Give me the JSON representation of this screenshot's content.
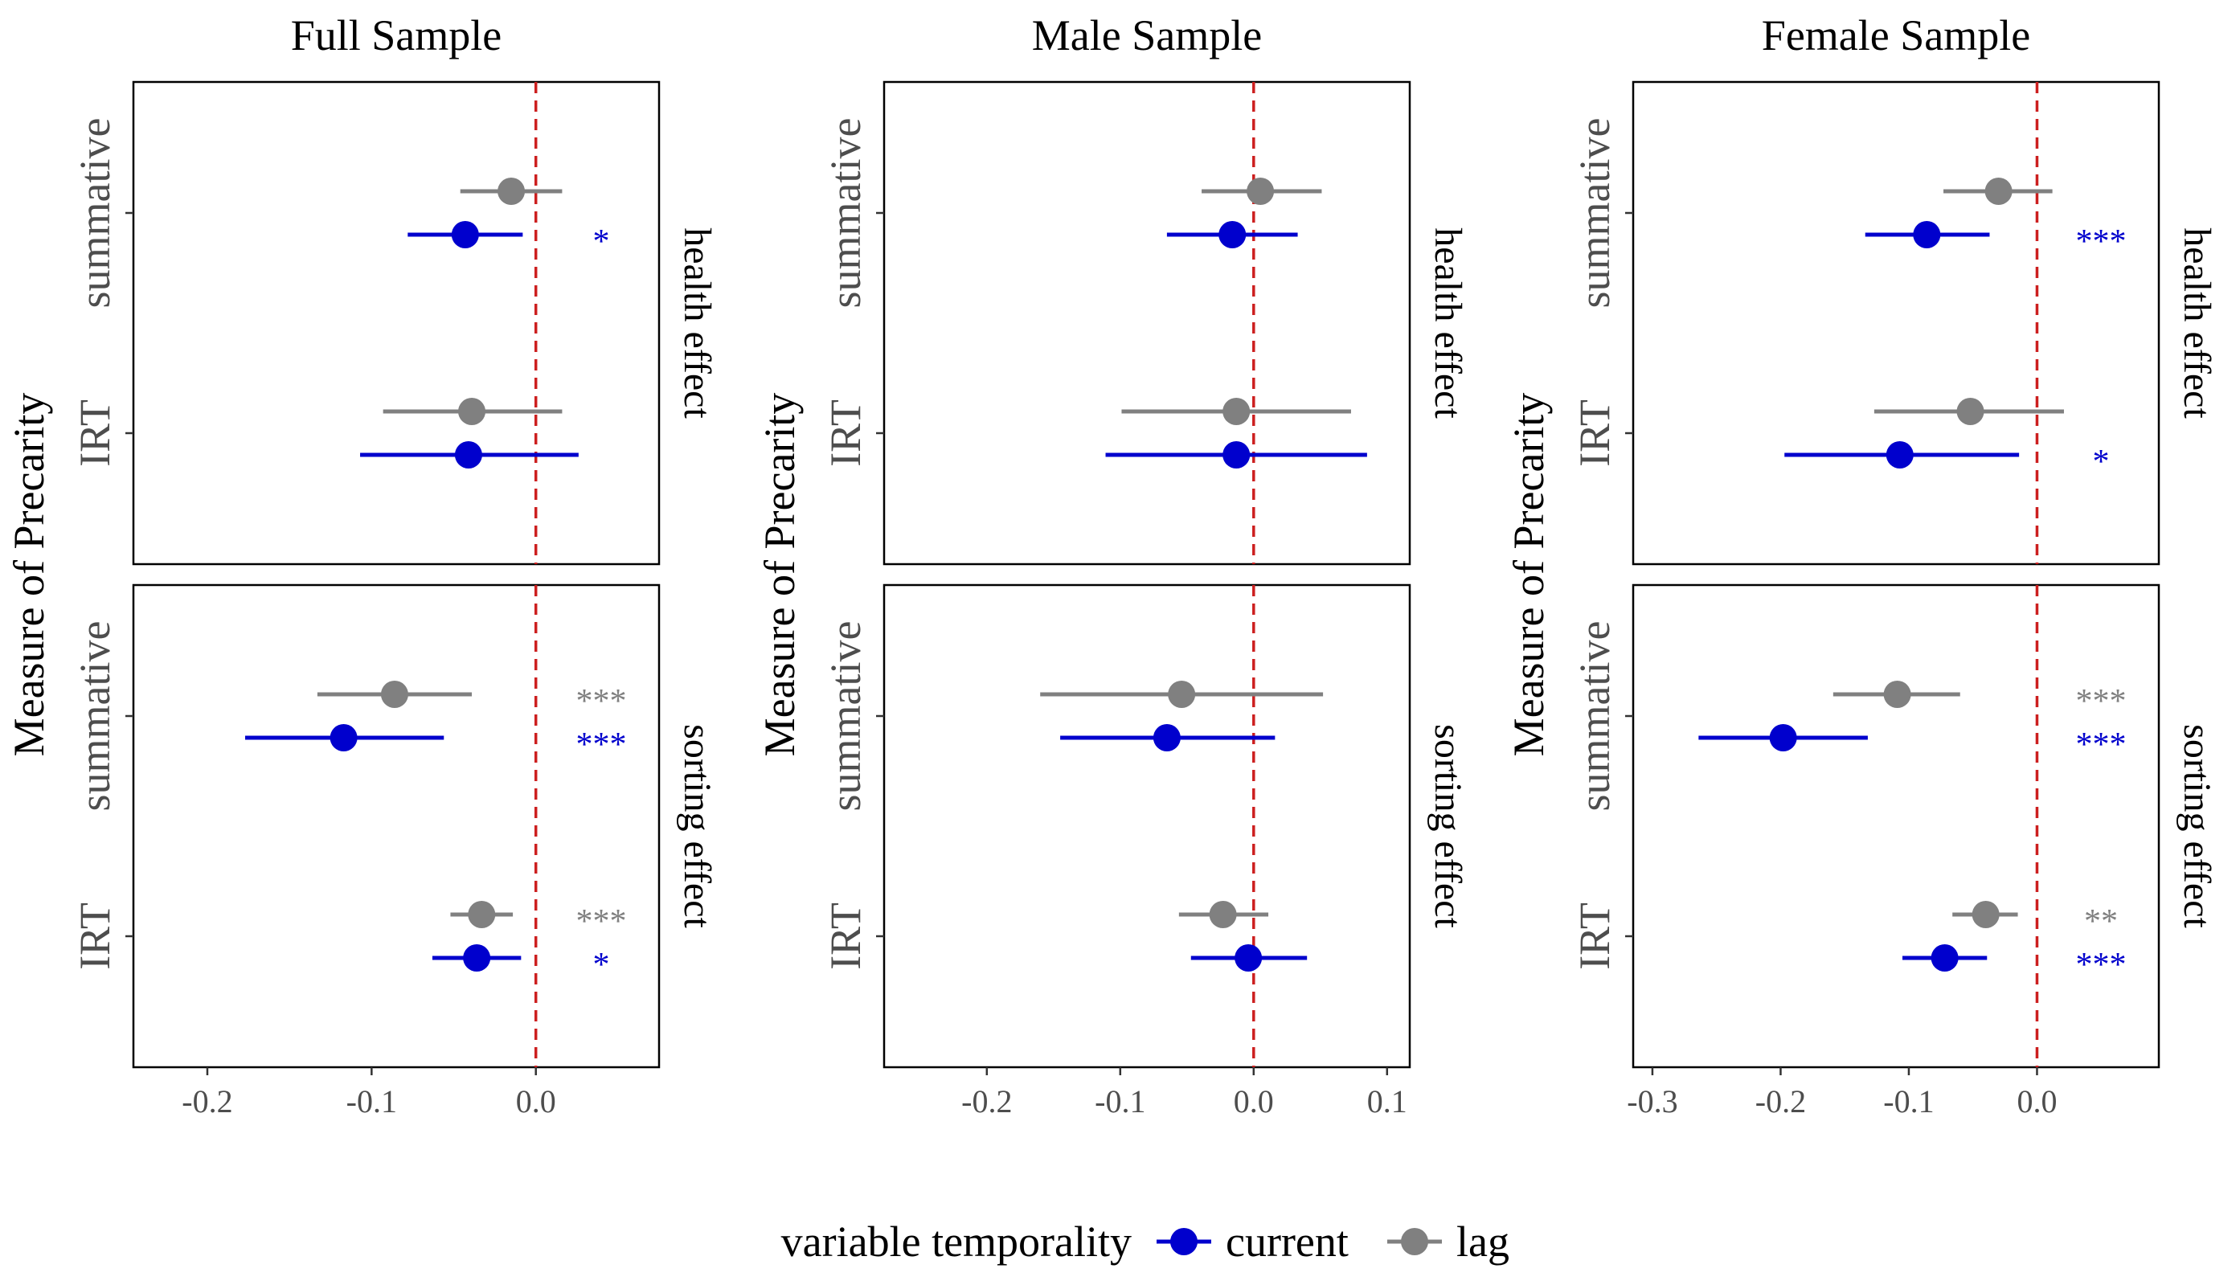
{
  "chart_data": {
    "type": "scatter",
    "subtype": "coefficient plot with error bars",
    "y_title": "Measure of Precarity",
    "y_categories": [
      "summative",
      "IRT"
    ],
    "facet_rows": [
      "health effect",
      "sorting effect"
    ],
    "reference_line_x": 0.0,
    "grid": false,
    "legend": {
      "position": "bottom",
      "title": "variable temporality",
      "entries": [
        {
          "label": "current",
          "color": "#0000CD"
        },
        {
          "label": "lag",
          "color": "#808080"
        }
      ]
    },
    "panels": [
      {
        "title": "Full Sample",
        "xlim": [
          -0.245,
          0.075
        ],
        "x_ticks": [
          -0.2,
          -0.1,
          0.0
        ],
        "x_tick_labels": [
          "-0.2",
          "-0.1",
          "0.0"
        ],
        "rows": [
          {
            "facet": "health effect",
            "estimates": [
              {
                "measure": "summative",
                "series": "lag",
                "x": -0.015,
                "lo": -0.046,
                "hi": 0.016,
                "stars": ""
              },
              {
                "measure": "summative",
                "series": "current",
                "x": -0.043,
                "lo": -0.078,
                "hi": -0.008,
                "stars": "*"
              },
              {
                "measure": "IRT",
                "series": "lag",
                "x": -0.039,
                "lo": -0.093,
                "hi": 0.016,
                "stars": ""
              },
              {
                "measure": "IRT",
                "series": "current",
                "x": -0.041,
                "lo": -0.107,
                "hi": 0.026,
                "stars": ""
              }
            ]
          },
          {
            "facet": "sorting effect",
            "estimates": [
              {
                "measure": "summative",
                "series": "lag",
                "x": -0.086,
                "lo": -0.133,
                "hi": -0.039,
                "stars": "***"
              },
              {
                "measure": "summative",
                "series": "current",
                "x": -0.117,
                "lo": -0.177,
                "hi": -0.056,
                "stars": "***"
              },
              {
                "measure": "IRT",
                "series": "lag",
                "x": -0.033,
                "lo": -0.052,
                "hi": -0.014,
                "stars": "***"
              },
              {
                "measure": "IRT",
                "series": "current",
                "x": -0.036,
                "lo": -0.063,
                "hi": -0.009,
                "stars": "*"
              }
            ]
          }
        ]
      },
      {
        "title": "Male Sample",
        "xlim": [
          -0.277,
          0.117
        ],
        "x_ticks": [
          -0.2,
          -0.1,
          0.0,
          0.1
        ],
        "x_tick_labels": [
          "-0.2",
          "-0.1",
          "0.0",
          "0.1"
        ],
        "rows": [
          {
            "facet": "health effect",
            "estimates": [
              {
                "measure": "summative",
                "series": "lag",
                "x": 0.005,
                "lo": -0.039,
                "hi": 0.051,
                "stars": ""
              },
              {
                "measure": "summative",
                "series": "current",
                "x": -0.016,
                "lo": -0.065,
                "hi": 0.033,
                "stars": ""
              },
              {
                "measure": "IRT",
                "series": "lag",
                "x": -0.013,
                "lo": -0.099,
                "hi": 0.073,
                "stars": ""
              },
              {
                "measure": "IRT",
                "series": "current",
                "x": -0.013,
                "lo": -0.111,
                "hi": 0.085,
                "stars": ""
              }
            ]
          },
          {
            "facet": "sorting effect",
            "estimates": [
              {
                "measure": "summative",
                "series": "lag",
                "x": -0.054,
                "lo": -0.16,
                "hi": 0.052,
                "stars": ""
              },
              {
                "measure": "summative",
                "series": "current",
                "x": -0.065,
                "lo": -0.145,
                "hi": 0.016,
                "stars": ""
              },
              {
                "measure": "IRT",
                "series": "lag",
                "x": -0.023,
                "lo": -0.056,
                "hi": 0.011,
                "stars": ""
              },
              {
                "measure": "IRT",
                "series": "current",
                "x": -0.004,
                "lo": -0.047,
                "hi": 0.04,
                "stars": ""
              }
            ]
          }
        ]
      },
      {
        "title": "Female Sample",
        "xlim": [
          -0.315,
          0.095
        ],
        "x_ticks": [
          -0.3,
          -0.2,
          -0.1,
          0.0
        ],
        "x_tick_labels": [
          "-0.3",
          "-0.2",
          "-0.1",
          "0.0"
        ],
        "rows": [
          {
            "facet": "health effect",
            "estimates": [
              {
                "measure": "summative",
                "series": "lag",
                "x": -0.03,
                "lo": -0.073,
                "hi": 0.012,
                "stars": ""
              },
              {
                "measure": "summative",
                "series": "current",
                "x": -0.086,
                "lo": -0.134,
                "hi": -0.037,
                "stars": "***"
              },
              {
                "measure": "IRT",
                "series": "lag",
                "x": -0.052,
                "lo": -0.127,
                "hi": 0.021,
                "stars": ""
              },
              {
                "measure": "IRT",
                "series": "current",
                "x": -0.107,
                "lo": -0.197,
                "hi": -0.014,
                "stars": "*"
              }
            ]
          },
          {
            "facet": "sorting effect",
            "estimates": [
              {
                "measure": "summative",
                "series": "lag",
                "x": -0.109,
                "lo": -0.159,
                "hi": -0.06,
                "stars": "***"
              },
              {
                "measure": "summative",
                "series": "current",
                "x": -0.198,
                "lo": -0.264,
                "hi": -0.132,
                "stars": "***"
              },
              {
                "measure": "IRT",
                "series": "lag",
                "x": -0.04,
                "lo": -0.066,
                "hi": -0.015,
                "stars": "**"
              },
              {
                "measure": "IRT",
                "series": "current",
                "x": -0.072,
                "lo": -0.105,
                "hi": -0.039,
                "stars": "***"
              }
            ]
          }
        ]
      }
    ]
  }
}
